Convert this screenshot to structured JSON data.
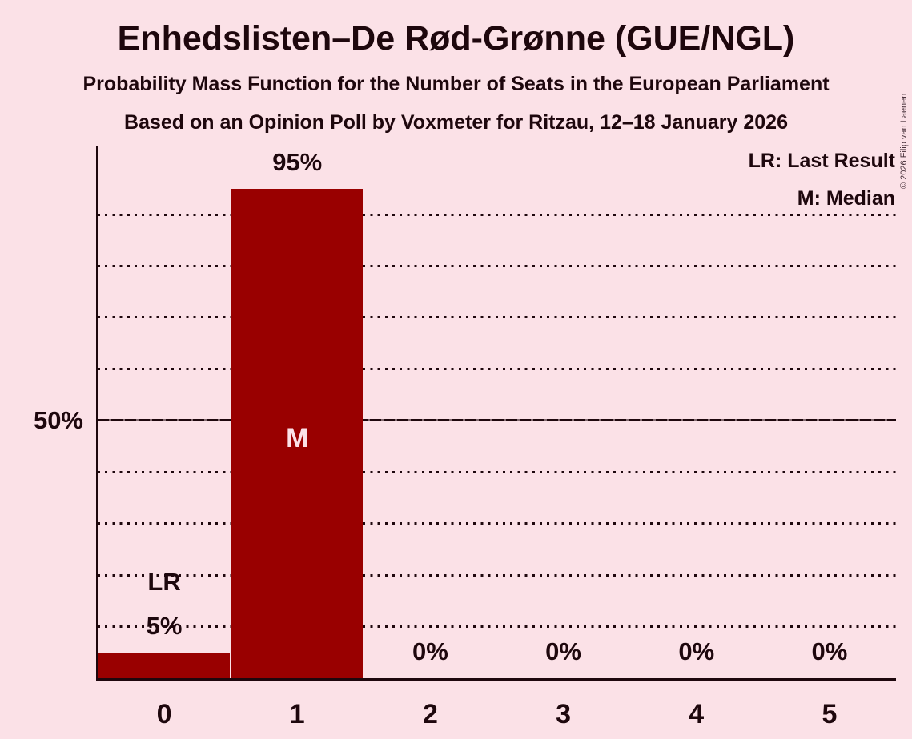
{
  "page": {
    "background_color": "#fbe1e7",
    "text_color": "#1e070d"
  },
  "header": {
    "title": "Enhedslisten–De Rød-Grønne (GUE/NGL)",
    "subtitle": "Probability Mass Function for the Number of Seats in the European Parliament",
    "subtitle2": "Based on an Opinion Poll by Voxmeter for Ritzau, 12–18 January 2026"
  },
  "legend": {
    "lr": "LR: Last Result",
    "m": "M: Median"
  },
  "copyright": "© 2026 Filip van Laenen",
  "y_axis": {
    "tick_label": "50%",
    "tick_value": 50
  },
  "chart_data": {
    "type": "bar",
    "title": "Enhedslisten–De Rød-Grønne (GUE/NGL)",
    "subtitle": "Probability Mass Function for the Number of Seats in the European Parliament",
    "subtitle2": "Based on an Opinion Poll by Voxmeter for Ritzau, 12–18 January 2026",
    "xlabel": "",
    "ylabel": "",
    "categories": [
      "0",
      "1",
      "2",
      "3",
      "4",
      "5"
    ],
    "values": [
      5,
      95,
      0,
      0,
      0,
      0
    ],
    "bar_labels": [
      "5%",
      "95%",
      "0%",
      "0%",
      "0%",
      "0%"
    ],
    "ylim": [
      0,
      103
    ],
    "y_tick_values": [
      50
    ],
    "y_tick_labels": [
      "50%"
    ],
    "gridlines_percent": [
      10,
      20,
      30,
      40,
      50,
      60,
      70,
      80,
      90
    ],
    "solid_gridline_percent": 50,
    "grid": true,
    "legend_position": "top-right",
    "legend_entries": [
      "LR: Last Result",
      "M: Median"
    ],
    "annotations": [
      {
        "category": "0",
        "text": "LR",
        "placement": "above-value-label"
      },
      {
        "category": "1",
        "text": "M",
        "placement": "inside-bar"
      }
    ],
    "colors": {
      "bar": "#990000",
      "background": "#fbe1e7",
      "text": "#1e070d",
      "inside_label": "#fbe1e7"
    }
  }
}
